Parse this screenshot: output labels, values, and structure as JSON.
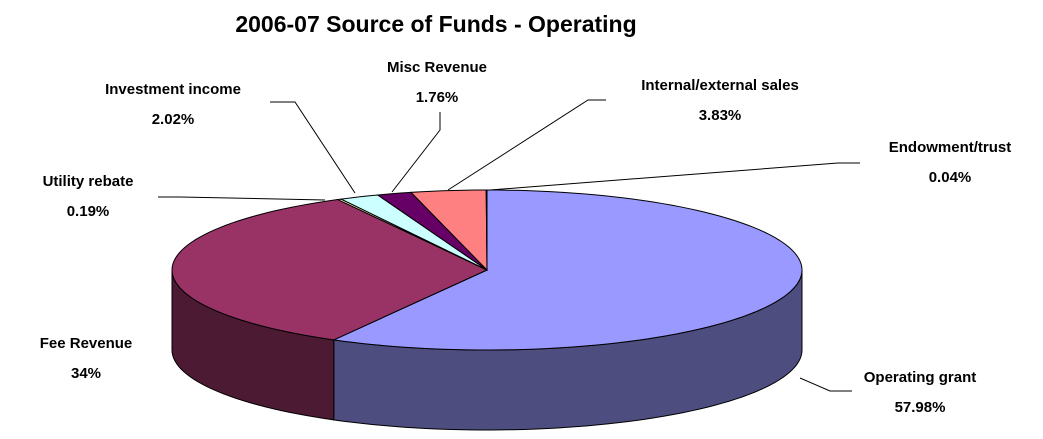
{
  "chart_data": {
    "type": "pie3d",
    "title": "2006-07 Source of Funds - Operating",
    "categories": [
      "Operating grant",
      "Fee Revenue",
      "Utility rebate",
      "Investment income",
      "Misc Revenue",
      "Internal/external sales",
      "Endowment/trust"
    ],
    "values": [
      57.98,
      34,
      0.19,
      2.02,
      1.76,
      3.83,
      0.04
    ],
    "value_labels": [
      "57.98%",
      "34%",
      "0.19%",
      "2.02%",
      "1.76%",
      "3.83%",
      "0.04%"
    ],
    "colors": [
      "#9999ff",
      "#993366",
      "#ffffcc",
      "#ccffff",
      "#660066",
      "#ff8080",
      "#0066cc"
    ]
  }
}
